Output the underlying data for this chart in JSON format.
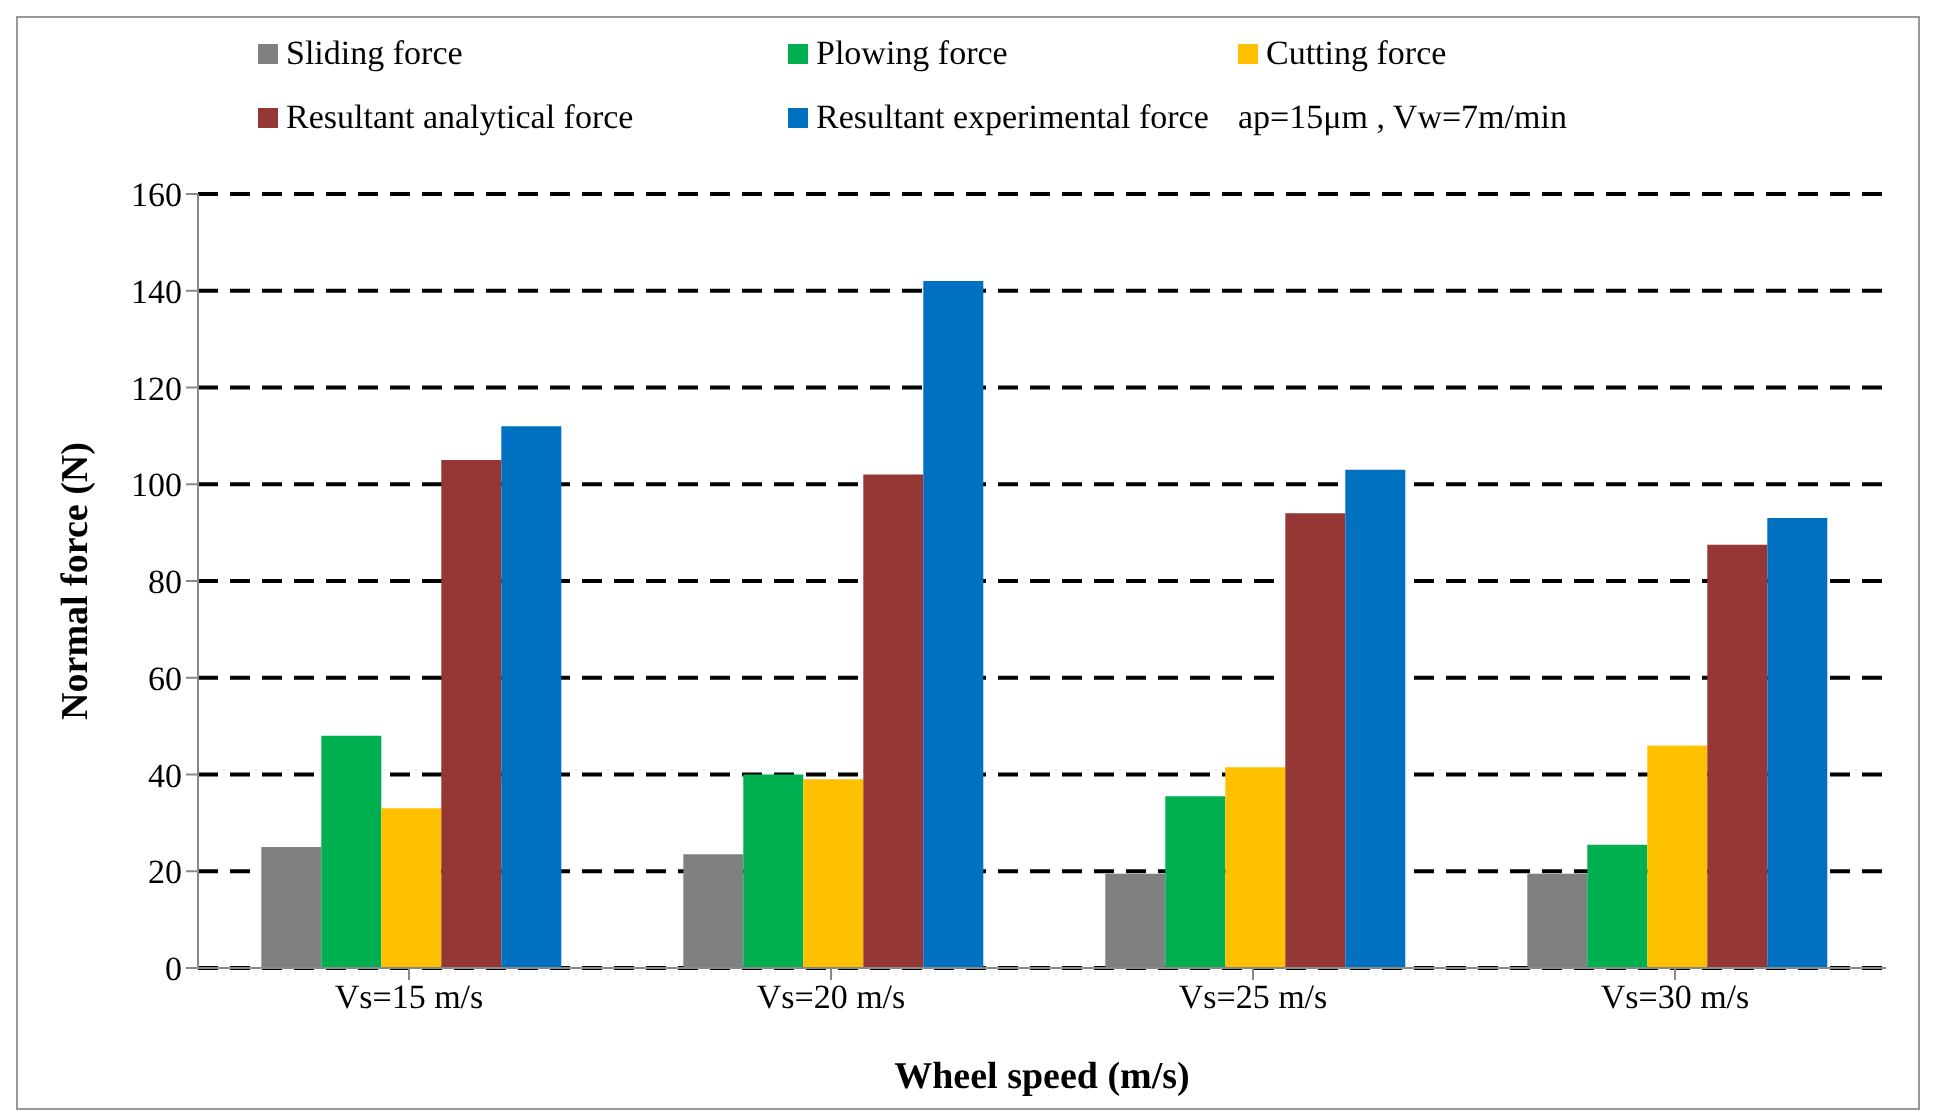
{
  "chart_data": {
    "type": "bar",
    "xlabel": "Wheel speed (m/s)",
    "ylabel": "Normal force (N)",
    "categories": [
      "Vs=15 m/s",
      "Vs=20 m/s",
      "Vs=25 m/s",
      "Vs=30 m/s"
    ],
    "series": [
      {
        "name": "Sliding force",
        "color": "#808080",
        "values": [
          25,
          23.5,
          19.5,
          19.5
        ]
      },
      {
        "name": "Plowing force",
        "color": "#00b050",
        "values": [
          48,
          40,
          35.5,
          25.5
        ]
      },
      {
        "name": "Cutting force",
        "color": "#ffc000",
        "values": [
          33,
          39,
          41.5,
          46
        ]
      },
      {
        "name": "Resultant analytical force",
        "color": "#953735",
        "values": [
          105,
          102,
          94,
          87.5
        ]
      },
      {
        "name": "Resultant experimental force",
        "color": "#0070c0",
        "values": [
          112,
          142,
          103,
          93
        ]
      }
    ],
    "ylim": [
      0,
      160
    ],
    "yticks": [
      0,
      20,
      40,
      60,
      80,
      100,
      120,
      140,
      160
    ],
    "grid": "y",
    "legend": "top",
    "annotations": [
      "ap=15μm , Vw=7m/min"
    ]
  }
}
